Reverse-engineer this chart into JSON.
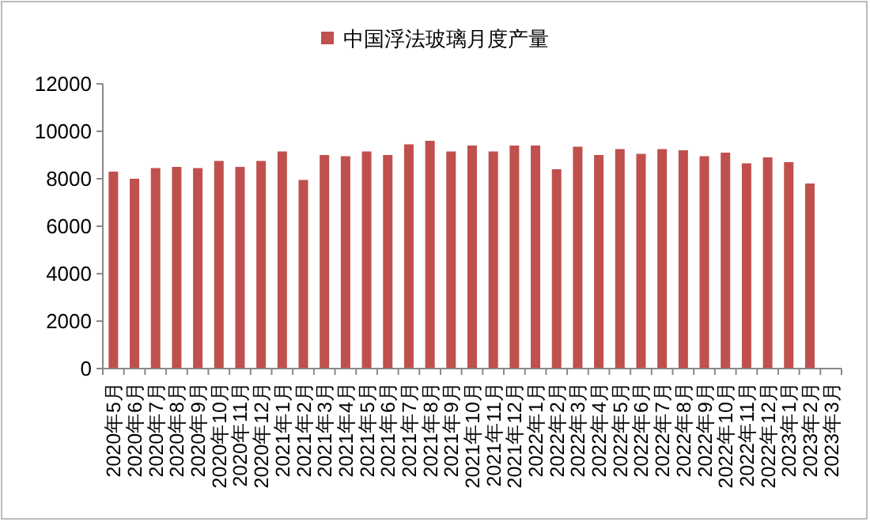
{
  "chart_data": {
    "type": "bar",
    "categories": [
      "2020年5月",
      "2020年6月",
      "2020年7月",
      "2020年8月",
      "2020年9月",
      "2020年10月",
      "2020年11月",
      "2020年12月",
      "2021年1月",
      "2021年2月",
      "2021年3月",
      "2021年4月",
      "2021年5月",
      "2021年6月",
      "2021年7月",
      "2021年8月",
      "2021年9月",
      "2021年10月",
      "2021年11月",
      "2021年12月",
      "2022年1月",
      "2022年2月",
      "2022年3月",
      "2022年4月",
      "2022年5月",
      "2022年6月",
      "2022年7月",
      "2022年8月",
      "2022年9月",
      "2022年10月",
      "2022年11月",
      "2022年12月",
      "2023年1月",
      "2023年2月",
      "2023年3月"
    ],
    "series": [
      {
        "name": "中国浮法玻璃月度产量",
        "color": "#c0504d",
        "values": [
          8300,
          8000,
          8450,
          8500,
          8450,
          8750,
          8500,
          8750,
          9150,
          7950,
          9000,
          8950,
          9150,
          9000,
          9450,
          9600,
          9150,
          9400,
          9150,
          9400,
          9400,
          8400,
          9350,
          9000,
          9250,
          9050,
          9250,
          9200,
          8950,
          9100,
          8650,
          8900,
          8700,
          7800,
          null
        ]
      }
    ],
    "ylim": [
      0,
      12000
    ],
    "yticks": [
      0,
      2000,
      4000,
      6000,
      8000,
      10000,
      12000
    ],
    "grid": false,
    "legend": "top"
  }
}
